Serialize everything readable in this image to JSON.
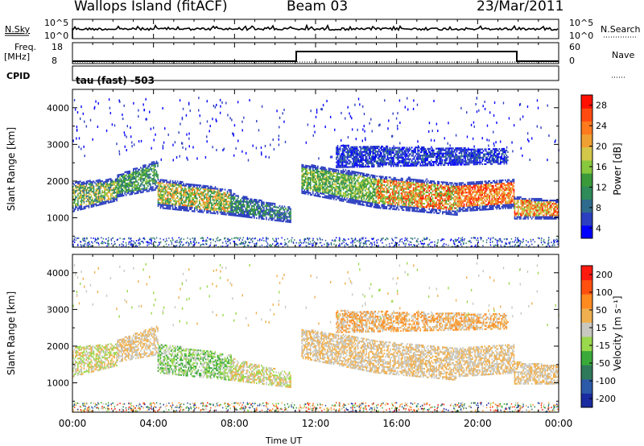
{
  "header": {
    "title": "Wallops Island (fitACF)",
    "beam": "Beam 03",
    "date": "23/Mar/2011"
  },
  "top_panels": {
    "nsky_label": "N.Sky",
    "nsky_ticks": [
      "10^5",
      "10^0"
    ],
    "nsearch_label": "N.Search",
    "nsearch_ticks": [
      "10^5",
      "10^0"
    ],
    "freq_label_1": "Freq.",
    "freq_label_2": "[MHz]",
    "freq_ticks": [
      "18",
      "8"
    ],
    "nave_label": "Nave",
    "nave_ticks": [
      "60",
      "0"
    ],
    "cpid_label": "CPID",
    "cpid_value": "tau (fast) -503"
  },
  "chart_data": [
    {
      "type": "heatmap",
      "name": "power",
      "ylabel": "Slant Range [km]",
      "xlabel": "",
      "ylim": [
        200,
        4500
      ],
      "y_ticks": [
        "4000",
        "3000",
        "2000",
        "1000"
      ],
      "colorbar_label": "Power [dB]",
      "colorbar_ticks": [
        "28",
        "24",
        "20",
        "16",
        "12",
        "8",
        "4"
      ],
      "colorbar_colors": [
        "#0000ff",
        "#2c3fc0",
        "#2f6b8c",
        "#2f8b5a",
        "#3a9a3a",
        "#88c83c",
        "#d4c84a",
        "#f0a032",
        "#ff7a1e",
        "#ff4a10",
        "#ff1000"
      ]
    },
    {
      "type": "heatmap",
      "name": "velocity",
      "ylabel": "Slant Range [km]",
      "xlabel": "Time UT",
      "ylim": [
        200,
        4500
      ],
      "y_ticks": [
        "4000",
        "3000",
        "2000",
        "1000"
      ],
      "colorbar_label": "Velocity [m s⁻¹]",
      "colorbar_ticks": [
        "200",
        "100",
        "50",
        "15",
        "-15",
        "-50",
        "-100",
        "-200"
      ],
      "colorbar_colors": [
        "#1a2aa0",
        "#2c5aa8",
        "#2f7a5a",
        "#3aaa3a",
        "#9ad84c",
        "#c8c8c0",
        "#f0b050",
        "#ff8a20",
        "#ff5010",
        "#ff1a10"
      ],
      "x_ticks": [
        "00:00",
        "04:00",
        "08:00",
        "12:00",
        "16:00",
        "20:00",
        "00:00"
      ]
    }
  ]
}
